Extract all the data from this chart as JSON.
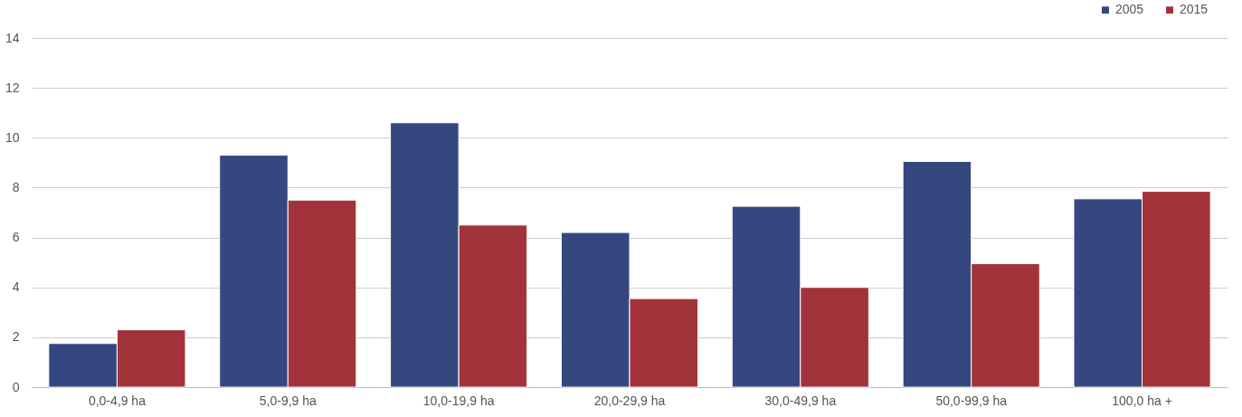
{
  "chart_data": {
    "type": "bar",
    "categories": [
      "0,0-4,9 ha",
      "5,0-9,9 ha",
      "10,0-19,9 ha",
      "20,0-29,9 ha",
      "30,0-49,9 ha",
      "50,0-99,9 ha",
      "100,0 ha +"
    ],
    "series": [
      {
        "name": "2005",
        "color": "#34477f",
        "values": [
          1.75,
          9.3,
          10.6,
          6.2,
          7.25,
          9.05,
          7.55
        ]
      },
      {
        "name": "2015",
        "color": "#a2333a",
        "values": [
          2.3,
          7.5,
          6.5,
          3.55,
          4.0,
          4.95,
          7.85
        ]
      }
    ],
    "ylim": [
      0,
      14
    ],
    "yticks": [
      0,
      2,
      4,
      6,
      8,
      10,
      12,
      14
    ],
    "grid": "y",
    "legend": "top right"
  }
}
